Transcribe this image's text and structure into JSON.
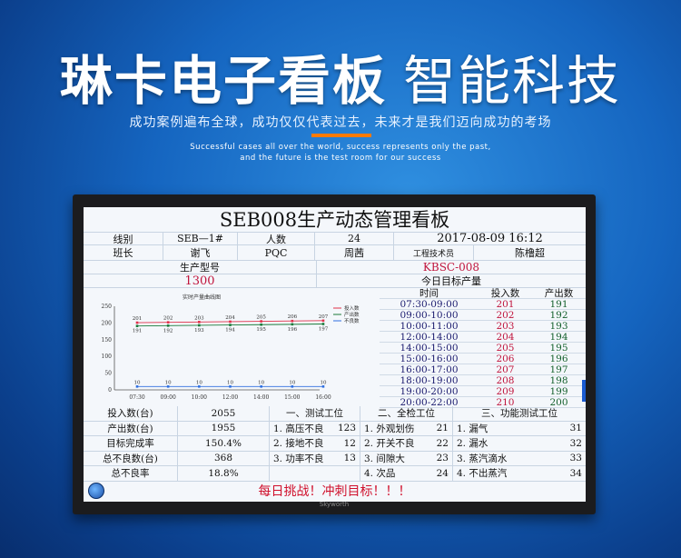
{
  "banner": {
    "brand": "琳卡电子看板",
    "tagline": "智能科技",
    "slogan": "成功案例遍布全球，成功仅仅代表过去，未来才是我们迈向成功的考场",
    "english_line1": "Successful cases all over the world, success represents only the past,",
    "english_line2": "and the future is the test room for our success"
  },
  "monitor_brand": "Skyworth",
  "board": {
    "title": "SEB008生产动态管理看板",
    "line_label": "线别",
    "line_value": "SEB—1#",
    "people_label": "人数",
    "people_value": "24",
    "datetime": "2017-08-09  16:12",
    "leader_label": "班长",
    "leader_value": "谢飞",
    "pqc_label": "PQC",
    "pqc_value": "周茜",
    "engineer_label": "工程技术员",
    "engineer_value": "陈橹超",
    "model_label": "生产型号",
    "model_value": "KBSC-008",
    "target_value": "1300",
    "target_label": "今日目标产量",
    "hourly_headers": [
      "时间",
      "投入数",
      "产出数"
    ],
    "hourly": [
      [
        "07:30-09:00",
        "201",
        "191"
      ],
      [
        "09:00-10:00",
        "202",
        "192"
      ],
      [
        "10:00-11:00",
        "203",
        "193"
      ],
      [
        "12:00-14:00",
        "204",
        "194"
      ],
      [
        "14:00-15:00",
        "205",
        "195"
      ],
      [
        "15:00-16:00",
        "206",
        "196"
      ],
      [
        "16:00-17:00",
        "207",
        "197"
      ],
      [
        "18:00-19:00",
        "208",
        "198"
      ],
      [
        "19:00-20:00",
        "209",
        "199"
      ],
      [
        "20:00-22:00",
        "210",
        "200"
      ]
    ],
    "summary": [
      [
        "投入数(台)",
        "2055"
      ],
      [
        "产出数(台)",
        "1955"
      ],
      [
        "目标完成率",
        "150.4%"
      ],
      [
        "总不良数(台)",
        "368"
      ],
      [
        "总不良率",
        "18.8%"
      ]
    ],
    "stations": [
      {
        "title": "一、测试工位",
        "items": [
          [
            "1. 高压不良",
            "123"
          ],
          [
            "2. 接地不良",
            "12"
          ],
          [
            "3. 功率不良",
            "13"
          ]
        ]
      },
      {
        "title": "二、全检工位",
        "items": [
          [
            "1. 外观划伤",
            "21"
          ],
          [
            "2. 开关不良",
            "22"
          ],
          [
            "3. 间隙大",
            "23"
          ],
          [
            "4. 次品",
            "24"
          ]
        ]
      },
      {
        "title": "三、功能测试工位",
        "items": [
          [
            "1. 漏气",
            "31"
          ],
          [
            "2. 漏水",
            "32"
          ],
          [
            "3. 蒸汽滴水",
            "33"
          ],
          [
            "4. 不出蒸汽",
            "34"
          ]
        ]
      }
    ],
    "footer": "每日挑战！冲刺目标！！！"
  },
  "chart_data": {
    "type": "line",
    "title": "实时产量曲线图",
    "categories": [
      "07:30",
      "09:00",
      "10:00",
      "12:00",
      "14:00",
      "15:00",
      "16:00"
    ],
    "ylim": [
      0,
      250
    ],
    "yticks": [
      0,
      50,
      100,
      150,
      200,
      250
    ],
    "legend_position": "top-right",
    "grid": false,
    "series": [
      {
        "name": "投入数",
        "color": "#e0304a",
        "values": [
          201,
          202,
          203,
          204,
          205,
          206,
          207
        ]
      },
      {
        "name": "产出数",
        "color": "#1a7a3a",
        "values": [
          191,
          192,
          193,
          194,
          195,
          196,
          197
        ]
      },
      {
        "name": "不良数",
        "color": "#2f6fe0",
        "values": [
          10,
          10,
          10,
          10,
          10,
          10,
          10
        ]
      }
    ]
  }
}
